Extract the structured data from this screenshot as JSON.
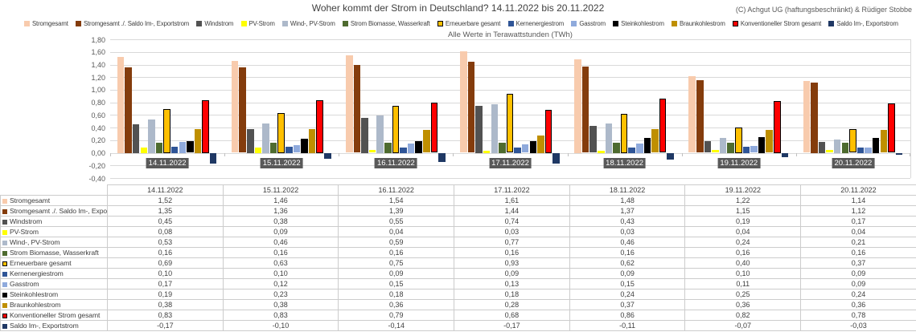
{
  "title": "Woher kommt der Strom in Deutschland? 14.11.2022 bis 20.11.2022",
  "copyright": "(C) Achgut UG (haftungsbeschränkt) & Rüdiger Stobbe",
  "chart_data": {
    "type": "bar",
    "subtitle": "Alle Werte in Terawattstunden (TWh)",
    "unit": "TWh",
    "categories": [
      "14.11.2022",
      "15.11.2022",
      "16.11.2022",
      "17.11.2022",
      "18.11.2022",
      "19.11.2022",
      "20.11.2022"
    ],
    "series": [
      {
        "name": "Stromgesamt",
        "color": "#F8CBAD",
        "values": [
          1.52,
          1.46,
          1.54,
          1.61,
          1.48,
          1.22,
          1.14
        ]
      },
      {
        "name": "Stromgesamt ./. Saldo Im-, Exportstrom",
        "color": "#843C0C",
        "values": [
          1.35,
          1.36,
          1.39,
          1.44,
          1.37,
          1.15,
          1.12
        ]
      },
      {
        "name": "Windstrom",
        "color": "#525252",
        "values": [
          0.45,
          0.38,
          0.55,
          0.74,
          0.43,
          0.19,
          0.17
        ]
      },
      {
        "name": "PV-Strom",
        "color": "#FFFF00",
        "values": [
          0.08,
          0.09,
          0.04,
          0.03,
          0.03,
          0.04,
          0.04
        ]
      },
      {
        "name": "Wind-, PV-Strom",
        "color": "#ADB9CA",
        "values": [
          0.53,
          0.46,
          0.59,
          0.77,
          0.46,
          0.24,
          0.21
        ]
      },
      {
        "name": "Strom Biomasse, Wasserkraft",
        "color": "#4E6B2F",
        "values": [
          0.16,
          0.16,
          0.16,
          0.16,
          0.16,
          0.16,
          0.16
        ]
      },
      {
        "name": "Erneuerbare gesamt",
        "color": "#FFC000",
        "border": "#000000",
        "values": [
          0.69,
          0.63,
          0.75,
          0.93,
          0.62,
          0.4,
          0.37
        ]
      },
      {
        "name": "Kernenergiestrom",
        "color": "#2F5597",
        "values": [
          0.1,
          0.1,
          0.09,
          0.09,
          0.09,
          0.1,
          0.09
        ]
      },
      {
        "name": "Gasstrom",
        "color": "#8FAADC",
        "values": [
          0.17,
          0.12,
          0.15,
          0.13,
          0.15,
          0.11,
          0.09
        ]
      },
      {
        "name": "Steinkohlestrom",
        "color": "#000000",
        "values": [
          0.19,
          0.23,
          0.18,
          0.18,
          0.24,
          0.25,
          0.24
        ]
      },
      {
        "name": "Braunkohlestrom",
        "color": "#BF8F00",
        "values": [
          0.38,
          0.38,
          0.36,
          0.28,
          0.37,
          0.36,
          0.36
        ]
      },
      {
        "name": "Konventioneller Strom gesamt",
        "color": "#FF0000",
        "border": "#000000",
        "values": [
          0.83,
          0.83,
          0.79,
          0.68,
          0.86,
          0.82,
          0.78
        ]
      },
      {
        "name": "Saldo Im-, Exportstrom",
        "color": "#1F3864",
        "values": [
          -0.17,
          -0.1,
          -0.14,
          -0.17,
          -0.11,
          -0.07,
          -0.03
        ]
      }
    ],
    "ylim": [
      -0.4,
      1.8
    ],
    "ytick_step": 0.2,
    "grid": true,
    "legend_position": "top",
    "number_format": "comma-decimal",
    "colors": {
      "gridline": "#D9D9D9",
      "axis_text": "#595959",
      "category_label_bg": "#595959",
      "category_label_text": "#FFFFFF",
      "table_border": "#CCCCCC",
      "table_text": "#404040"
    }
  }
}
